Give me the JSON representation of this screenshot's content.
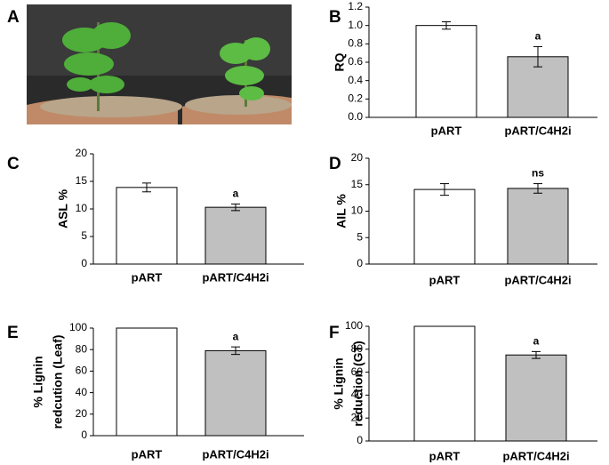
{
  "chart_data": [
    {
      "type": "image",
      "panel": "A"
    },
    {
      "type": "bar",
      "panel": "B",
      "ylabel": "RQ",
      "categories": [
        "pART",
        "pART/C4H2i"
      ],
      "values": [
        1.0,
        0.66
      ],
      "errors": [
        0.04,
        0.11
      ],
      "significance": [
        null,
        "a"
      ],
      "colors": [
        "#ffffff",
        "#c0c0c0"
      ],
      "ylim": [
        0,
        1.2
      ],
      "yticks": [
        {
          "value": 0,
          "label": "0.0"
        },
        {
          "value": 0.2,
          "label": "0.2"
        },
        {
          "value": 0.4,
          "label": "0.4"
        },
        {
          "value": 0.6,
          "label": "0.6"
        },
        {
          "value": 0.8,
          "label": "0.8"
        },
        {
          "value": 1.0,
          "label": "1.0"
        },
        {
          "value": 1.2,
          "label": "1.2"
        }
      ]
    },
    {
      "type": "bar",
      "panel": "C",
      "ylabel": "ASL %",
      "categories": [
        "pART",
        "pART/C4H2i"
      ],
      "values": [
        13.9,
        10.3
      ],
      "errors": [
        0.8,
        0.6
      ],
      "significance": [
        null,
        "a"
      ],
      "colors": [
        "#ffffff",
        "#c0c0c0"
      ],
      "ylim": [
        0,
        20
      ],
      "yticks": [
        0,
        5,
        10,
        15,
        20
      ]
    },
    {
      "type": "bar",
      "panel": "D",
      "ylabel": "AIL %",
      "categories": [
        "pART",
        "pART/C4H2i"
      ],
      "values": [
        14.1,
        14.3
      ],
      "errors": [
        1.1,
        0.9
      ],
      "significance": [
        null,
        "ns"
      ],
      "colors": [
        "#ffffff",
        "#c0c0c0"
      ],
      "ylim": [
        0,
        20
      ],
      "yticks": [
        0,
        5,
        10,
        15,
        20
      ]
    },
    {
      "type": "bar",
      "panel": "E",
      "ylabel": [
        "% Lignin",
        "redcution (Leaf)"
      ],
      "categories": [
        "pART",
        "pART/C4H2i"
      ],
      "values": [
        100,
        79
      ],
      "errors": [
        null,
        3.5
      ],
      "significance": [
        null,
        "a"
      ],
      "colors": [
        "#ffffff",
        "#c0c0c0"
      ],
      "ylim": [
        0,
        100
      ],
      "yticks": [
        0,
        20,
        40,
        60,
        80,
        100
      ]
    },
    {
      "type": "bar",
      "panel": "F",
      "ylabel": [
        "% Lignin",
        "reduction (GT)"
      ],
      "categories": [
        "pART",
        "pART/C4H2i"
      ],
      "values": [
        100,
        75
      ],
      "errors": [
        null,
        3
      ],
      "significance": [
        null,
        "a"
      ],
      "colors": [
        "#ffffff",
        "#c0c0c0"
      ],
      "ylim": [
        0,
        100
      ],
      "yticks": [
        0,
        20,
        40,
        60,
        80,
        100
      ]
    }
  ]
}
